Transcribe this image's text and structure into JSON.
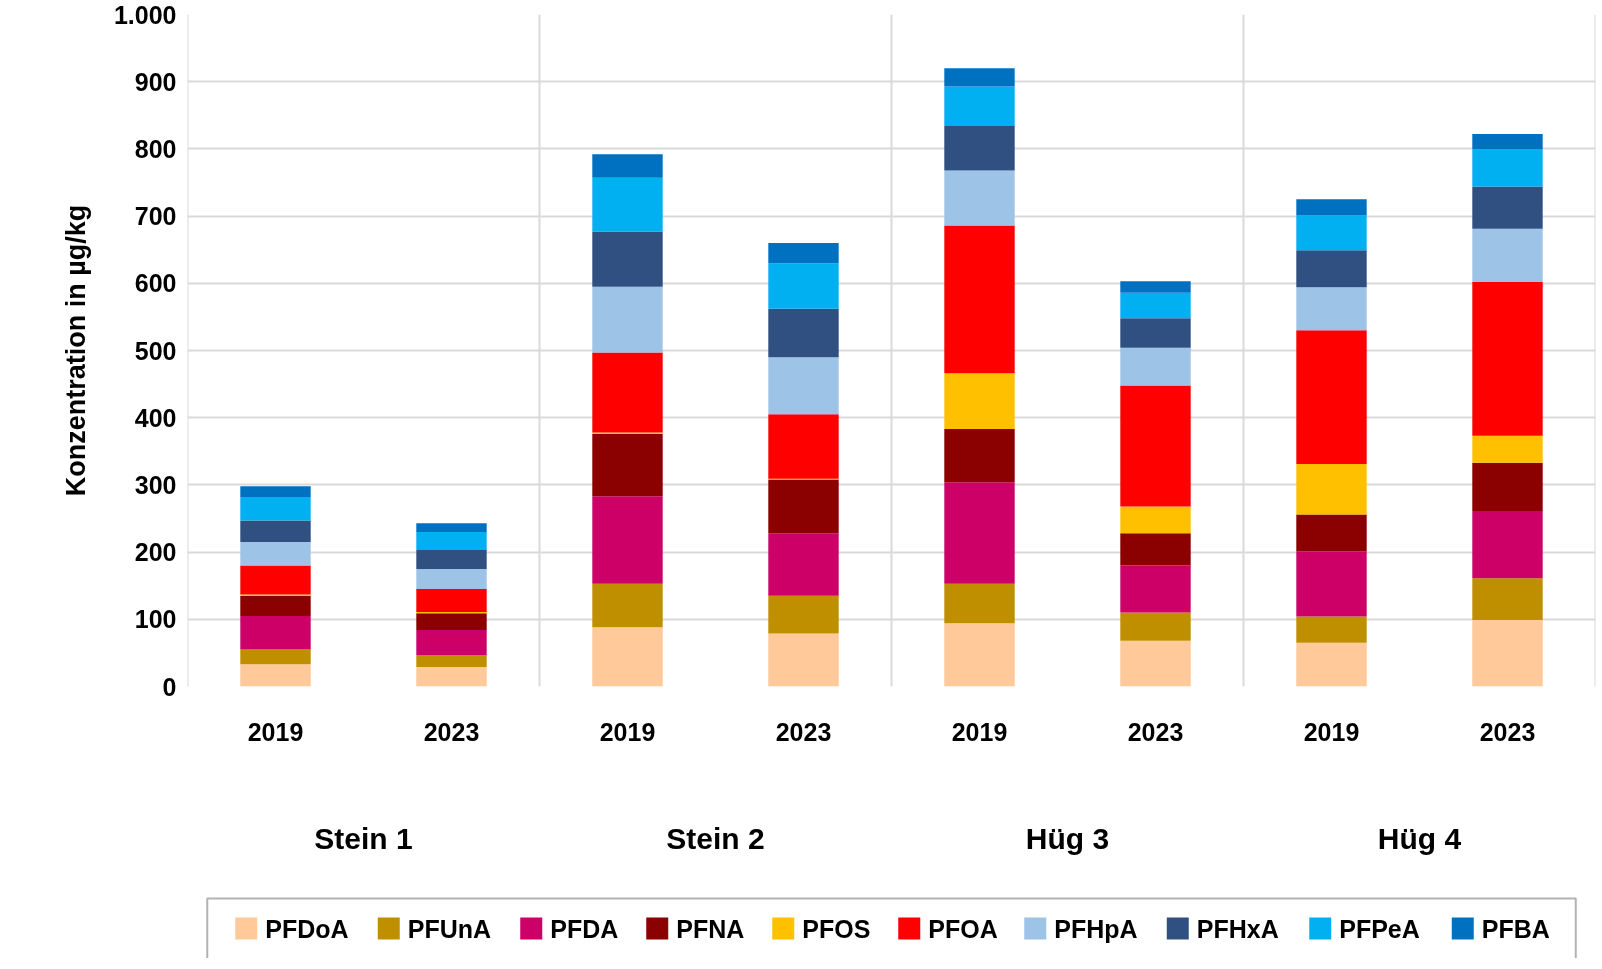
{
  "chart_data": {
    "type": "bar",
    "stacked": true,
    "ylabel": "Konzentration in µg/kg",
    "categories": [
      "2019",
      "2023",
      "2019",
      "2023",
      "2019",
      "2023",
      "2019",
      "2023"
    ],
    "annotations": [
      "Stein 1",
      "Stein 2",
      "Hüg 3",
      "Hüg 4"
    ],
    "series": [
      {
        "name": "PFDoA",
        "color": "#ffc999",
        "values": [
          33,
          29,
          88,
          79,
          94,
          68,
          65,
          99
        ]
      },
      {
        "name": "PFUnA",
        "color": "#bf8f00",
        "values": [
          22,
          18,
          65,
          56,
          59,
          42,
          39,
          62
        ]
      },
      {
        "name": "PFDA",
        "color": "#cc0066",
        "values": [
          50,
          37,
          130,
          93,
          151,
          70,
          97,
          100
        ]
      },
      {
        "name": "PFNA",
        "color": "#8b0000",
        "values": [
          30,
          25,
          93,
          80,
          79,
          48,
          55,
          72
        ]
      },
      {
        "name": "PFOS",
        "color": "#ffc000",
        "values": [
          2,
          2,
          2,
          1,
          83,
          40,
          75,
          40
        ]
      },
      {
        "name": "PFOA",
        "color": "#ff0000",
        "values": [
          43,
          34,
          119,
          96,
          220,
          180,
          199,
          229
        ]
      },
      {
        "name": "PFHpA",
        "color": "#9dc3e6",
        "values": [
          35,
          30,
          98,
          85,
          82,
          56,
          64,
          79
        ]
      },
      {
        "name": "PFHxA",
        "color": "#2f5080",
        "values": [
          32,
          28,
          82,
          72,
          66,
          44,
          55,
          63
        ]
      },
      {
        "name": "PFPeA",
        "color": "#00b0f0",
        "values": [
          35,
          27,
          80,
          68,
          59,
          38,
          52,
          55
        ]
      },
      {
        "name": "PFBA",
        "color": "#0070c0",
        "values": [
          16,
          13,
          35,
          30,
          27,
          17,
          24,
          23
        ]
      }
    ],
    "ylim": [
      0,
      1000
    ],
    "yticks": [
      0,
      100,
      200,
      300,
      400,
      500,
      600,
      700,
      800,
      900,
      {
        "value": 1000,
        "label": "1.000"
      }
    ],
    "grid": "y",
    "legend": "bottom"
  }
}
